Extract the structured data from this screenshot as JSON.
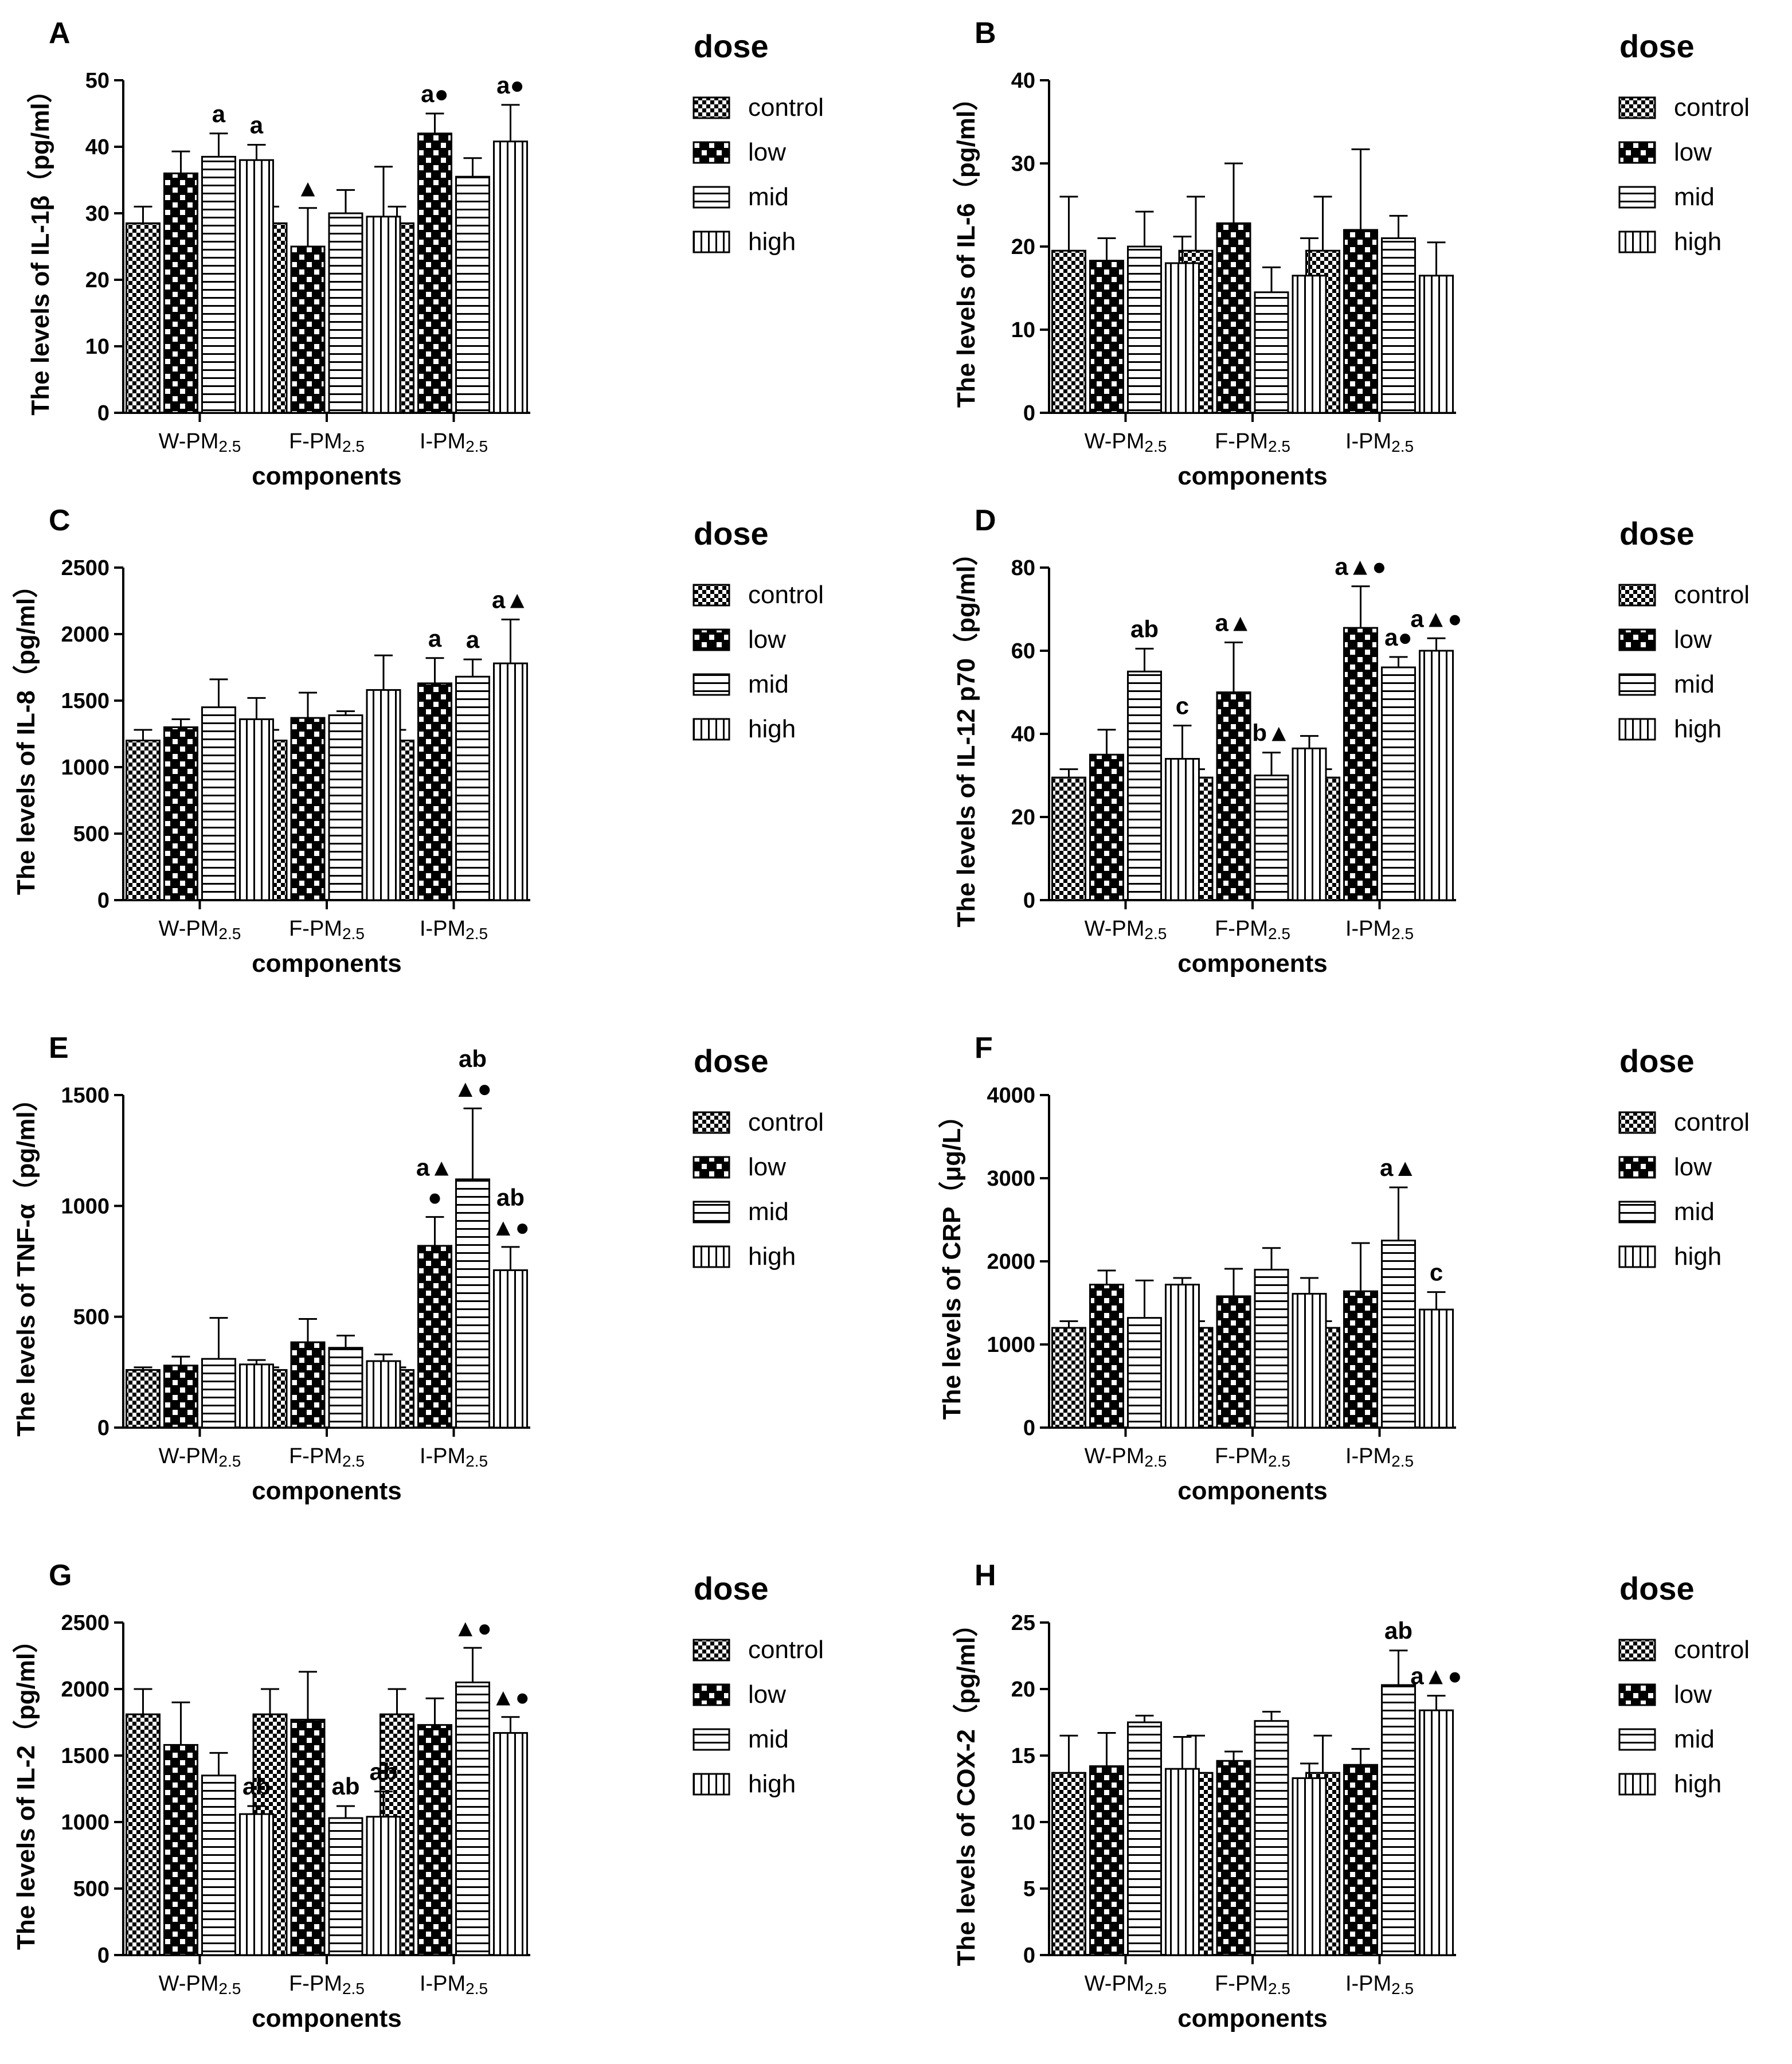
{
  "legend": {
    "title": "dose",
    "items": [
      "control",
      "low",
      "mid",
      "high"
    ],
    "fill_colors": [
      "#ffffff",
      "#ffffff",
      "#ffffff",
      "#ffffff"
    ],
    "stroke_color": "#000000"
  },
  "groups": [
    {
      "main": "W-PM",
      "sub": "2.5"
    },
    {
      "main": "F-PM",
      "sub": "2.5"
    },
    {
      "main": "I-PM",
      "sub": "2.5"
    }
  ],
  "xlabel": "components",
  "chart_data": [
    {
      "type": "bar",
      "panel": "A",
      "ylabel": "The levels of IL-1β（pg/ml）",
      "yticks": [
        0,
        10,
        20,
        30,
        40,
        50
      ],
      "ylim": [
        0,
        50
      ],
      "series": [
        {
          "name": "control",
          "values": [
            28.5,
            28.5,
            28.5
          ],
          "errors": [
            2.5,
            2.5,
            2.5
          ],
          "annotations": [
            "",
            "",
            ""
          ]
        },
        {
          "name": "low",
          "values": [
            36,
            25,
            42
          ],
          "errors": [
            3.3,
            5.8,
            3
          ],
          "annotations": [
            "",
            "▲",
            "a●"
          ]
        },
        {
          "name": "mid",
          "values": [
            38.5,
            30,
            35.5
          ],
          "errors": [
            3.5,
            3.5,
            2.8
          ],
          "annotations": [
            "a",
            "",
            ""
          ]
        },
        {
          "name": "high",
          "values": [
            38,
            29.5,
            40.8
          ],
          "errors": [
            2.3,
            7.5,
            5.5
          ],
          "annotations": [
            "a",
            "",
            "a●"
          ]
        }
      ]
    },
    {
      "type": "bar",
      "panel": "B",
      "ylabel": "The levels of IL-6（pg/ml）",
      "yticks": [
        0,
        10,
        20,
        30,
        40
      ],
      "ylim": [
        0,
        40
      ],
      "series": [
        {
          "name": "control",
          "values": [
            19.5,
            19.5,
            19.5
          ],
          "errors": [
            6.5,
            6.5,
            6.5
          ],
          "annotations": [
            "",
            "",
            ""
          ]
        },
        {
          "name": "low",
          "values": [
            18.3,
            22.8,
            22
          ],
          "errors": [
            2.7,
            7.2,
            9.7
          ],
          "annotations": [
            "",
            "",
            ""
          ]
        },
        {
          "name": "mid",
          "values": [
            20,
            14.5,
            21
          ],
          "errors": [
            4.2,
            3,
            2.7
          ],
          "annotations": [
            "",
            "",
            ""
          ]
        },
        {
          "name": "high",
          "values": [
            18,
            16.5,
            16.5
          ],
          "errors": [
            3.2,
            4.5,
            4
          ],
          "annotations": [
            "",
            "",
            ""
          ]
        }
      ]
    },
    {
      "type": "bar",
      "panel": "C",
      "ylabel": "The levels of IL-8（pg/ml）",
      "yticks": [
        0,
        500,
        1000,
        1500,
        2000,
        2500
      ],
      "ylim": [
        0,
        2500
      ],
      "series": [
        {
          "name": "control",
          "values": [
            1200,
            1200,
            1200
          ],
          "errors": [
            80,
            80,
            80
          ],
          "annotations": [
            "",
            "",
            ""
          ]
        },
        {
          "name": "low",
          "values": [
            1300,
            1370,
            1630
          ],
          "errors": [
            60,
            190,
            190
          ],
          "annotations": [
            "",
            "",
            "a"
          ]
        },
        {
          "name": "mid",
          "values": [
            1450,
            1390,
            1680
          ],
          "errors": [
            210,
            30,
            130
          ],
          "annotations": [
            "",
            "",
            "a"
          ]
        },
        {
          "name": "high",
          "values": [
            1360,
            1580,
            1780
          ],
          "errors": [
            160,
            260,
            330
          ],
          "annotations": [
            "",
            "",
            "a▲"
          ]
        }
      ]
    },
    {
      "type": "bar",
      "panel": "D",
      "ylabel": "The levels of IL-12 p70（pg/ml）",
      "yticks": [
        0,
        20,
        40,
        60,
        80
      ],
      "ylim": [
        0,
        80
      ],
      "series": [
        {
          "name": "control",
          "values": [
            29.5,
            29.5,
            29.5
          ],
          "errors": [
            2,
            2,
            2
          ],
          "annotations": [
            "",
            "",
            ""
          ]
        },
        {
          "name": "low",
          "values": [
            35,
            50,
            65.5
          ],
          "errors": [
            6,
            12,
            10
          ],
          "annotations": [
            "",
            "a▲",
            "a▲●"
          ]
        },
        {
          "name": "mid",
          "values": [
            55,
            30,
            56
          ],
          "errors": [
            5.5,
            5.5,
            2.5
          ],
          "annotations": [
            "ab",
            "b▲",
            "a●"
          ]
        },
        {
          "name": "high",
          "values": [
            34,
            36.5,
            60
          ],
          "errors": [
            8,
            3,
            3
          ],
          "annotations": [
            "c",
            "",
            "a▲●"
          ]
        }
      ]
    },
    {
      "type": "bar",
      "panel": "E",
      "ylabel": "The levels of TNF-α（pg/ml）",
      "yticks": [
        0,
        500,
        1000,
        1500
      ],
      "ylim": [
        0,
        1500
      ],
      "series": [
        {
          "name": "control",
          "values": [
            260,
            260,
            260
          ],
          "errors": [
            12,
            12,
            12
          ],
          "annotations": [
            "",
            "",
            ""
          ]
        },
        {
          "name": "low",
          "values": [
            280,
            385,
            820
          ],
          "errors": [
            40,
            105,
            130
          ],
          "annotations": [
            "",
            "",
            "a▲\n●"
          ]
        },
        {
          "name": "mid",
          "values": [
            310,
            360,
            1120
          ],
          "errors": [
            185,
            55,
            320
          ],
          "annotations": [
            "",
            "",
            "ab\n▲●"
          ]
        },
        {
          "name": "high",
          "values": [
            285,
            300,
            710
          ],
          "errors": [
            20,
            30,
            105
          ],
          "annotations": [
            "",
            "",
            "ab\n▲●"
          ]
        }
      ]
    },
    {
      "type": "bar",
      "panel": "F",
      "ylabel": "The levels of CRP（μg/L）",
      "yticks": [
        0,
        1000,
        2000,
        3000,
        4000
      ],
      "ylim": [
        0,
        4000
      ],
      "series": [
        {
          "name": "control",
          "values": [
            1200,
            1200,
            1200
          ],
          "errors": [
            80,
            80,
            80
          ],
          "annotations": [
            "",
            "",
            ""
          ]
        },
        {
          "name": "low",
          "values": [
            1720,
            1580,
            1640
          ],
          "errors": [
            170,
            330,
            580
          ],
          "annotations": [
            "",
            "",
            ""
          ]
        },
        {
          "name": "mid",
          "values": [
            1320,
            1900,
            2250
          ],
          "errors": [
            450,
            260,
            640
          ],
          "annotations": [
            "",
            "",
            "a▲"
          ]
        },
        {
          "name": "high",
          "values": [
            1720,
            1610,
            1420
          ],
          "errors": [
            80,
            190,
            210
          ],
          "annotations": [
            "",
            "",
            "c"
          ]
        }
      ]
    },
    {
      "type": "bar",
      "panel": "G",
      "ylabel": "The levels of IL-2（pg/ml）",
      "yticks": [
        0,
        500,
        1000,
        1500,
        2000,
        2500
      ],
      "ylim": [
        0,
        2500
      ],
      "series": [
        {
          "name": "control",
          "values": [
            1810,
            1810,
            1810
          ],
          "errors": [
            190,
            190,
            190
          ],
          "annotations": [
            "",
            "",
            ""
          ]
        },
        {
          "name": "low",
          "values": [
            1580,
            1770,
            1730
          ],
          "errors": [
            320,
            360,
            200
          ],
          "annotations": [
            "",
            "",
            ""
          ]
        },
        {
          "name": "mid",
          "values": [
            1350,
            1030,
            2050
          ],
          "errors": [
            170,
            90,
            260
          ],
          "annotations": [
            "",
            "ab",
            "▲●"
          ]
        },
        {
          "name": "high",
          "values": [
            1060,
            1040,
            1670
          ],
          "errors": [
            60,
            190,
            120
          ],
          "annotations": [
            "ab",
            "ab",
            "▲●"
          ]
        }
      ]
    },
    {
      "type": "bar",
      "panel": "H",
      "ylabel": "The levels of COX-2（pg/ml）",
      "yticks": [
        0,
        5,
        10,
        15,
        20,
        25
      ],
      "ylim": [
        0,
        25
      ],
      "series": [
        {
          "name": "control",
          "values": [
            13.7,
            13.7,
            13.7
          ],
          "errors": [
            2.8,
            2.8,
            2.8
          ],
          "annotations": [
            "",
            "",
            ""
          ]
        },
        {
          "name": "low",
          "values": [
            14.2,
            14.6,
            14.3
          ],
          "errors": [
            2.5,
            0.7,
            1.2
          ],
          "annotations": [
            "",
            "",
            ""
          ]
        },
        {
          "name": "mid",
          "values": [
            17.5,
            17.6,
            20.3
          ],
          "errors": [
            0.5,
            0.7,
            2.6
          ],
          "annotations": [
            "",
            "",
            "ab"
          ]
        },
        {
          "name": "high",
          "values": [
            14,
            13.3,
            18.4
          ],
          "errors": [
            2.4,
            1.1,
            1.1
          ],
          "annotations": [
            "",
            "",
            "a▲●"
          ]
        }
      ]
    }
  ]
}
